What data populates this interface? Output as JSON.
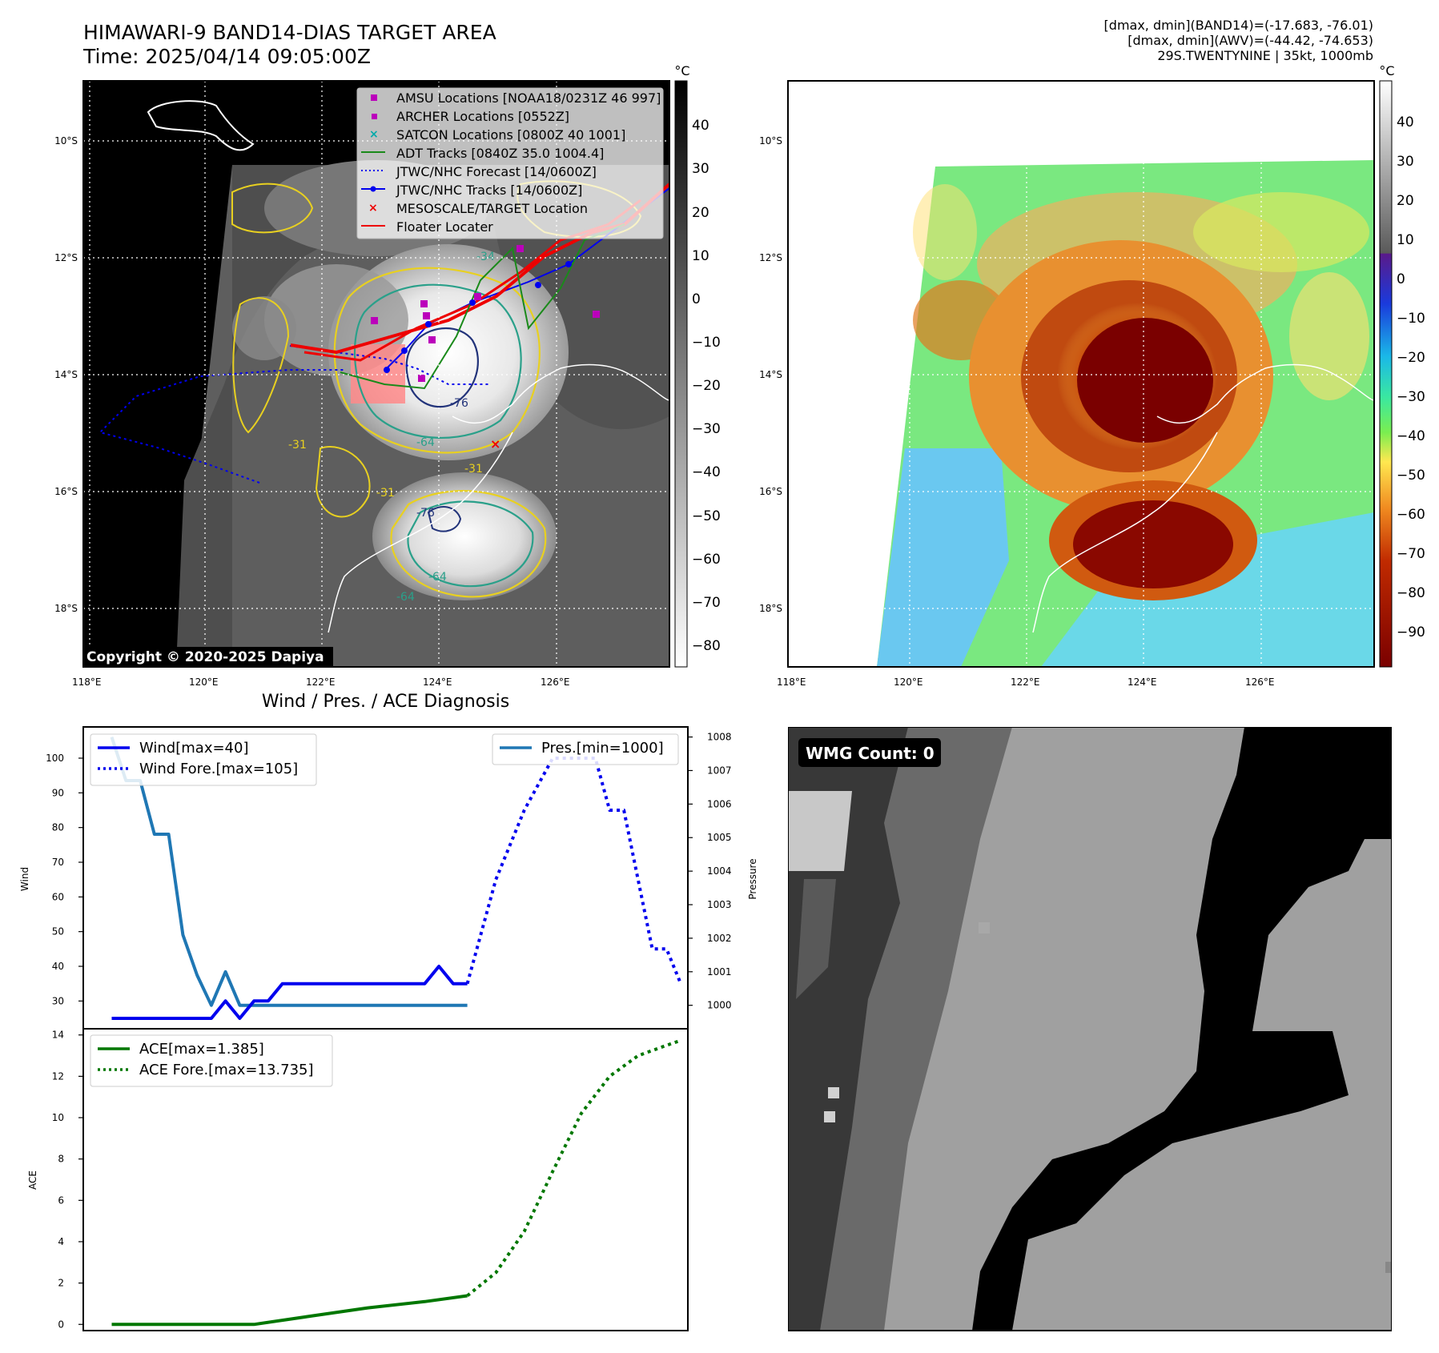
{
  "header": {
    "title_line1": "HIMAWARI-9 BAND14-DIAS TARGET AREA",
    "title_line2": "Time: 2025/04/14 09:05:00Z",
    "stats_line1": "[dmax, dmin](BAND14)=(-17.683, -76.01)",
    "stats_line2": "[dmax, dmin](AWV)=(-44.42, -74.653)",
    "stats_line3": "29S.TWENTYNINE | 35kt, 1000mb"
  },
  "maps": {
    "lon_ticks": [
      "118°E",
      "120°E",
      "122°E",
      "124°E",
      "126°E"
    ],
    "lat_ticks": [
      "10°S",
      "12°S",
      "14°S",
      "16°S",
      "18°S"
    ],
    "colorbar_unit": "°C",
    "left_cbar_ticks": [
      "40",
      "30",
      "20",
      "10",
      "0",
      "−10",
      "−20",
      "−30",
      "−40",
      "−50",
      "−60",
      "−70",
      "−80"
    ],
    "right_cbar_ticks": [
      "40",
      "30",
      "20",
      "10",
      "0",
      "−10",
      "−20",
      "−30",
      "−40",
      "−50",
      "−60",
      "−70",
      "−80",
      "−90"
    ],
    "copyright": "Copyright © 2020-2025 Dapiya",
    "contour_labels": [
      "-76",
      "-64",
      "-31",
      "-31",
      "-76",
      "-64",
      "-64",
      "-31",
      "-34"
    ],
    "colors": {
      "adt": "#1a8a1a",
      "jtwc": "#0000ee",
      "floater": "#ee0000",
      "amsu": "#bb00bb",
      "satcon": "#00aaaa",
      "contour_yellow": "#e8d020",
      "contour_teal": "#2aa08a",
      "contour_navy": "#22337a"
    },
    "legend": [
      {
        "label": "AMSU Locations [NOAA18/0231Z 46 997]",
        "icon": "magenta-square"
      },
      {
        "label": "ARCHER Locations [0552Z]",
        "icon": "magenta-square-small"
      },
      {
        "label": "SATCON Locations [0800Z 40 1001]",
        "icon": "cyan-x"
      },
      {
        "label": "ADT Tracks [0840Z 35.0 1004.4]",
        "icon": "green-line"
      },
      {
        "label": "JTWC/NHC Forecast [14/0600Z]",
        "icon": "blue-dotted-line"
      },
      {
        "label": "JTWC/NHC Tracks [14/0600Z]",
        "icon": "blue-line-dot"
      },
      {
        "label": "MESOSCALE/TARGET Location",
        "icon": "red-x"
      },
      {
        "label": "Floater Locater",
        "icon": "red-line"
      }
    ]
  },
  "wmg": {
    "label": "WMG Count: 0"
  },
  "chart_data": [
    {
      "type": "line",
      "title": "Wind / Pres. / ACE Diagnosis",
      "ylabel": "Wind",
      "ylabel_right": "Pressure",
      "ylim": [
        22,
        109
      ],
      "ylim_right": [
        999.3,
        1008.3
      ],
      "xlim": [
        0,
        42.5
      ],
      "yticks": [
        30,
        40,
        50,
        60,
        70,
        80,
        90,
        100
      ],
      "yticks_right": [
        1000,
        1001,
        1002,
        1003,
        1004,
        1005,
        1006,
        1007,
        1008
      ],
      "legend_left": [
        "Wind[max=40]",
        "Wind Fore.[max=105]"
      ],
      "legend_right": [
        "Pres.[min=1000]"
      ],
      "series": [
        {
          "name": "Wind[max=40]",
          "axis": "left",
          "style": "solid",
          "color": "#0000ee",
          "x": [
            2,
            8,
            9,
            10,
            11,
            12,
            13,
            14,
            16,
            18,
            20,
            22,
            24,
            25,
            26,
            27
          ],
          "y": [
            25,
            25,
            25,
            30,
            25,
            30,
            30,
            35,
            35,
            35,
            35,
            35,
            35,
            40,
            35,
            35
          ]
        },
        {
          "name": "Wind Fore.[max=105]",
          "axis": "left",
          "style": "dotted",
          "color": "#0000ee",
          "x": [
            27,
            29,
            31,
            33,
            35,
            36,
            37,
            38,
            39,
            40,
            41,
            42
          ],
          "y": [
            35,
            65,
            85,
            100,
            100,
            100,
            85,
            85,
            65,
            45,
            45,
            35
          ]
        },
        {
          "name": "Pres.[min=1000]",
          "axis": "right",
          "style": "solid",
          "color": "#1f77b4",
          "x": [
            2,
            3,
            4,
            5,
            6,
            7,
            8,
            9,
            10,
            11,
            12,
            13,
            14,
            16,
            18,
            20,
            22,
            24,
            26,
            27
          ],
          "y": [
            1008,
            1006.7,
            1006.7,
            1005.1,
            1005.1,
            1002.1,
            1000.9,
            1000,
            1001,
            1000,
            1000,
            1000,
            1000,
            1000,
            1000,
            1000,
            1000,
            1000,
            1000,
            1000
          ]
        }
      ]
    },
    {
      "type": "line",
      "title": "",
      "ylabel": "ACE",
      "ylim": [
        -0.3,
        14.3
      ],
      "xlim": [
        0,
        42.5
      ],
      "yticks": [
        0,
        2,
        4,
        6,
        8,
        10,
        12,
        14
      ],
      "legend": [
        "ACE[max=1.385]",
        "ACE Fore.[max=13.735]"
      ],
      "series": [
        {
          "name": "ACE[max=1.385]",
          "style": "solid",
          "color": "#007700",
          "x": [
            2,
            12,
            16,
            20,
            24,
            27
          ],
          "y": [
            0,
            0,
            0.4,
            0.8,
            1.1,
            1.385
          ]
        },
        {
          "name": "ACE Fore.[max=13.735]",
          "style": "dotted",
          "color": "#007700",
          "x": [
            27,
            29,
            31,
            33,
            35,
            37,
            39,
            41,
            42
          ],
          "y": [
            1.385,
            2.5,
            4.5,
            7.4,
            10.2,
            12,
            13,
            13.5,
            13.735
          ]
        }
      ]
    }
  ]
}
